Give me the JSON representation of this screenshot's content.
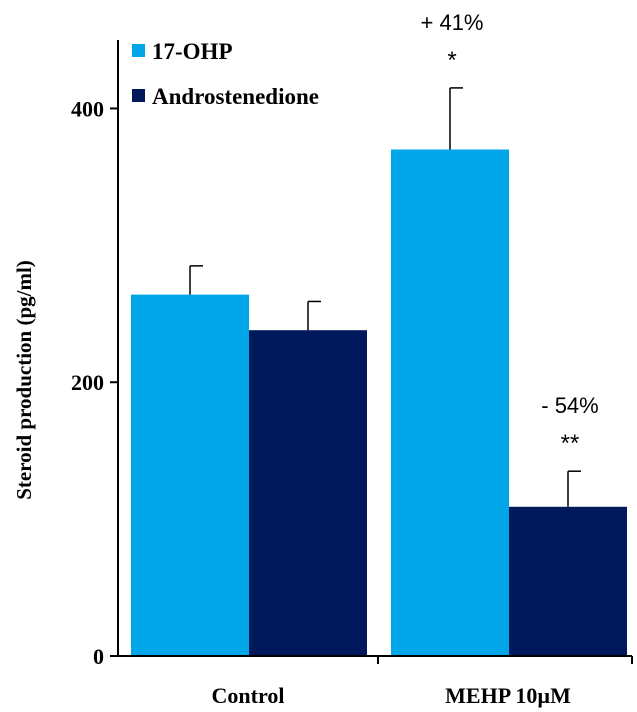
{
  "chart_data": {
    "type": "bar",
    "categories": [
      "Control",
      "MEHP 10µM"
    ],
    "series": [
      {
        "name": "17-OHP",
        "color": "#00a6e8",
        "values": [
          264,
          370
        ],
        "errors": [
          21,
          45
        ]
      },
      {
        "name": "Androstenedione",
        "color": "#00185c",
        "values": [
          238,
          109
        ],
        "errors": [
          21,
          26
        ]
      }
    ],
    "ylabel": "Steroid production (pg/ml)",
    "xlabel": "",
    "ylim": [
      0,
      450
    ],
    "yticks": [
      0,
      200,
      400
    ],
    "legend_position": "top-left",
    "grid": false,
    "annotations": [
      {
        "category_index": 1,
        "series_index": 0,
        "percent": "+ 41%",
        "stars": "*"
      },
      {
        "category_index": 1,
        "series_index": 1,
        "percent": "- 54%",
        "stars": "**"
      }
    ]
  }
}
